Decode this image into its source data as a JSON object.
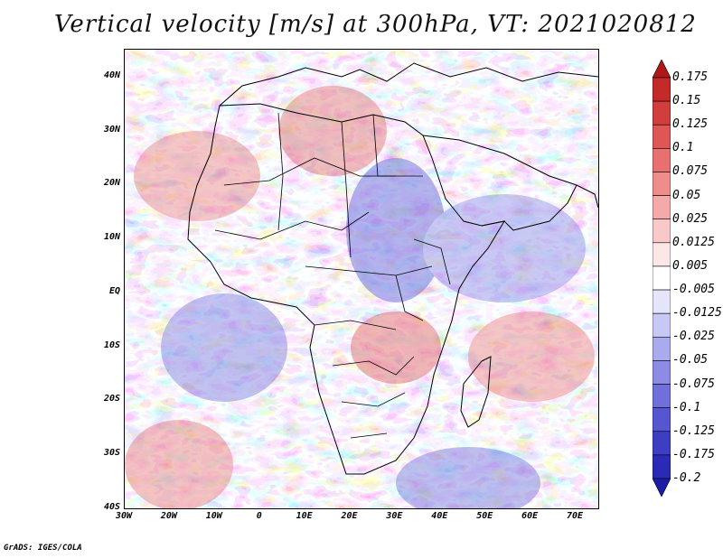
{
  "title": "Vertical velocity [m/s] at 300hPa, VT: 2021020812",
  "credit": "GrADS: IGES/COLA",
  "map": {
    "lon_range": [
      -30,
      75
    ],
    "lat_range": [
      -40,
      45
    ],
    "lat_ticks": [
      "40N",
      "30N",
      "20N",
      "10N",
      "EQ",
      "10S",
      "20S",
      "30S",
      "40S"
    ],
    "lat_values": [
      40,
      30,
      20,
      10,
      0,
      -10,
      -20,
      -30,
      -40
    ],
    "lon_ticks": [
      "30W",
      "20W",
      "10W",
      "0",
      "10E",
      "20E",
      "30E",
      "40E",
      "50E",
      "60E",
      "70E"
    ],
    "lon_values": [
      -30,
      -20,
      -10,
      0,
      10,
      20,
      30,
      40,
      50,
      60,
      70
    ]
  },
  "colorbar": {
    "labels": [
      "0.175",
      "0.15",
      "0.125",
      "0.1",
      "0.075",
      "0.05",
      "0.025",
      "0.0125",
      "0.005",
      "-0.005",
      "-0.0125",
      "-0.025",
      "-0.05",
      "-0.075",
      "-0.1",
      "-0.125",
      "-0.175",
      "-0.2"
    ],
    "colors": [
      "#b01818",
      "#c42a2a",
      "#d23e3e",
      "#de5656",
      "#e87070",
      "#ef8c8c",
      "#f5aaaa",
      "#f9c8c8",
      "#fde6e6",
      "#ffffff",
      "#e4e4fb",
      "#c8c8f5",
      "#aaaaee",
      "#8c8ce6",
      "#7070dc",
      "#5656d0",
      "#3e3ec4",
      "#2a2ab6",
      "#1c1ca6"
    ]
  }
}
